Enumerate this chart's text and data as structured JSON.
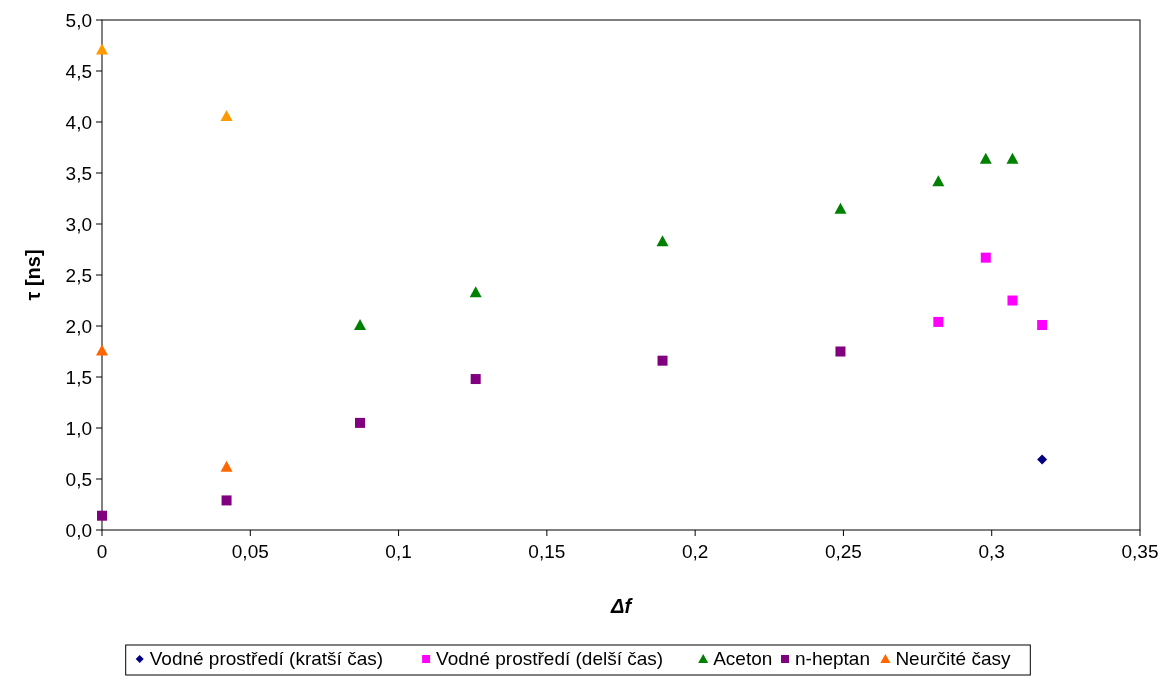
{
  "chart_data": {
    "type": "scatter",
    "xlabel": "Δf",
    "ylabel": "τ [ns]",
    "xlim": [
      0,
      0.35
    ],
    "ylim": [
      0,
      5
    ],
    "xticks": [
      0,
      {
        "value": 0.05,
        "label": "0,05"
      },
      {
        "value": 0.1,
        "label": "0,1"
      },
      {
        "value": 0.15,
        "label": "0,15"
      },
      {
        "value": 0.2,
        "label": "0,2"
      },
      {
        "value": 0.25,
        "label": "0,25"
      },
      {
        "value": 0.3,
        "label": "0,3"
      },
      {
        "value": 0.35,
        "label": "0,35"
      }
    ],
    "yticks": [
      {
        "value": 0,
        "label": "0,0"
      },
      {
        "value": 0.5,
        "label": "0,5"
      },
      {
        "value": 1,
        "label": "1,0"
      },
      {
        "value": 1.5,
        "label": "1,5"
      },
      {
        "value": 2,
        "label": "2,0"
      },
      {
        "value": 2.5,
        "label": "2,5"
      },
      {
        "value": 3,
        "label": "3,0"
      },
      {
        "value": 3.5,
        "label": "3,5"
      },
      {
        "value": 4,
        "label": "4,0"
      },
      {
        "value": 4.5,
        "label": "4,5"
      },
      {
        "value": 5,
        "label": "5,0"
      }
    ],
    "grid": false,
    "legend": "bottom",
    "series": [
      {
        "name": "Vodné prostředí (kratší čas)",
        "color": "#000080",
        "marker": "diamond",
        "x": [
          0.317
        ],
        "values": [
          0.69
        ]
      },
      {
        "name": "Vodné prostředí (delší čas)",
        "color": "#ff00ff",
        "marker": "square",
        "x": [
          0.282,
          0.298,
          0.307,
          0.317
        ],
        "values": [
          2.04,
          2.67,
          2.25,
          2.01
        ]
      },
      {
        "name": "Aceton",
        "color": "#008000",
        "marker": "triangle",
        "x": [
          0.087,
          0.126,
          0.189,
          0.249,
          0.282,
          0.298,
          0.307
        ],
        "values": [
          2.01,
          2.33,
          2.83,
          3.15,
          3.42,
          3.64,
          3.64
        ]
      },
      {
        "name": "n-heptan",
        "color": "#800080",
        "marker": "square",
        "x": [
          0,
          0.042,
          0.087,
          0.126,
          0.189,
          0.249
        ],
        "values": [
          0.14,
          0.29,
          1.05,
          1.48,
          1.66,
          1.75
        ]
      },
      {
        "name": "Neurčité časy",
        "color": "#ff6600",
        "colors": [
          "#ff9900",
          "#ff9900",
          "#ff6600",
          "#ff6600"
        ],
        "marker": "triangle",
        "x": [
          0,
          0.042,
          0,
          0.042
        ],
        "values": [
          4.71,
          4.06,
          1.76,
          0.62
        ]
      }
    ]
  }
}
